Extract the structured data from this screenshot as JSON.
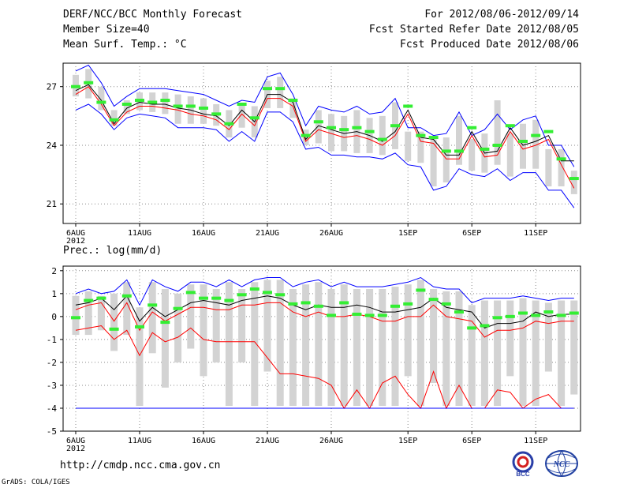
{
  "header": {
    "title": "DERF/NCC/BCC Monthly Forecast",
    "member_size": "Member Size=40",
    "variable_top": "Mean Surf. Temp.: °C",
    "forecast_period": "For 2012/08/06-2012/09/14",
    "started_refer": "Fcst Started Refer Date 2012/08/05",
    "produced": "Fcst Produced Date 2012/08/06"
  },
  "footer": {
    "url": "http://cmdp.ncc.cma.gov.cn",
    "grads": "GrADS: COLA/IGES",
    "logo_left_text": "BCC",
    "logo_right_text": "NCC"
  },
  "colors": {
    "ensemble_bound": "#0000ff",
    "ensemble_mean": "#000000",
    "control_line": "#ff0000",
    "median_marker": "#33ee33",
    "box": "#d3d3d3",
    "grid": "#888888"
  },
  "chart_data": [
    {
      "type": "line",
      "title": "Mean Surf. Temp.: °C",
      "x_days": 40,
      "xticks": [
        {
          "day": 0,
          "label": "6AUG",
          "sub": "2012"
        },
        {
          "day": 5,
          "label": "11AUG"
        },
        {
          "day": 10,
          "label": "16AUG"
        },
        {
          "day": 15,
          "label": "21AUG"
        },
        {
          "day": 20,
          "label": "26AUG"
        },
        {
          "day": 26,
          "label": "1SEP"
        },
        {
          "day": 31,
          "label": "6SEP"
        },
        {
          "day": 36,
          "label": "11SEP"
        }
      ],
      "ylim": [
        20,
        28.2
      ],
      "yticks": [
        21,
        24,
        27
      ],
      "series": [
        {
          "name": "ensemble max",
          "color": "#0000ff",
          "values": [
            27.8,
            28.1,
            27.2,
            26.0,
            26.5,
            26.9,
            26.9,
            26.9,
            26.8,
            26.7,
            26.6,
            26.3,
            26.0,
            26.3,
            26.2,
            27.5,
            27.7,
            26.6,
            25.0,
            26.0,
            25.8,
            25.7,
            26.0,
            25.6,
            25.7,
            26.4,
            24.9,
            24.9,
            24.5,
            24.6,
            25.7,
            24.5,
            24.8,
            25.6,
            24.8,
            25.3,
            25.5,
            24.0,
            24.0,
            22.9
          ]
        },
        {
          "name": "ensemble min",
          "color": "#0000ff",
          "values": [
            25.8,
            26.1,
            25.6,
            24.8,
            25.4,
            25.6,
            25.5,
            25.4,
            24.9,
            24.9,
            24.9,
            24.8,
            24.2,
            24.7,
            24.2,
            25.7,
            25.7,
            25.2,
            23.8,
            23.9,
            23.5,
            23.5,
            23.4,
            23.4,
            23.3,
            23.6,
            23.0,
            22.9,
            21.7,
            21.9,
            22.8,
            22.5,
            22.4,
            22.8,
            22.2,
            22.6,
            22.6,
            21.7,
            21.7,
            20.8
          ]
        },
        {
          "name": "ensemble mean",
          "color": "#000000",
          "values": [
            26.8,
            27.1,
            26.3,
            25.1,
            25.9,
            26.2,
            26.1,
            26.1,
            25.9,
            25.8,
            25.6,
            25.5,
            25.0,
            25.8,
            25.2,
            26.6,
            26.6,
            26.2,
            24.3,
            25.0,
            24.8,
            24.6,
            24.7,
            24.5,
            24.2,
            24.7,
            25.8,
            24.4,
            24.3,
            23.5,
            23.5,
            24.7,
            23.6,
            23.7,
            24.9,
            24.0,
            24.2,
            24.5,
            23.2,
            23.2
          ]
        },
        {
          "name": "control",
          "color": "#ff0000",
          "values": [
            26.6,
            27.0,
            26.1,
            25.0,
            25.7,
            26.0,
            26.0,
            25.9,
            25.8,
            25.6,
            25.5,
            25.3,
            24.8,
            25.6,
            25.0,
            26.4,
            26.4,
            26.0,
            24.2,
            24.8,
            24.6,
            24.4,
            24.5,
            24.3,
            24.0,
            24.5,
            25.6,
            24.2,
            24.1,
            23.3,
            23.3,
            24.5,
            23.4,
            23.5,
            24.7,
            23.8,
            24.0,
            24.3,
            23.0,
            21.8
          ]
        },
        {
          "name": "median",
          "color": "#33ee33",
          "values": [
            27.0,
            27.2,
            26.2,
            25.3,
            26.1,
            26.3,
            26.2,
            26.3,
            26.0,
            26.0,
            25.9,
            25.6,
            25.1,
            26.1,
            25.4,
            26.9,
            26.9,
            26.3,
            24.5,
            25.2,
            24.9,
            24.8,
            24.9,
            24.7,
            24.3,
            25.0,
            26.0,
            24.5,
            24.4,
            23.7,
            23.7,
            24.9,
            23.8,
            24.0,
            25.0,
            24.2,
            24.5,
            24.7,
            23.3,
            22.3
          ]
        },
        {
          "name": "box upper",
          "color": "#d3d3d3",
          "values": [
            27.6,
            27.9,
            27.0,
            25.8,
            26.3,
            26.7,
            26.7,
            26.7,
            26.6,
            26.5,
            26.4,
            26.1,
            25.8,
            26.1,
            26.0,
            27.3,
            27.5,
            26.4,
            24.8,
            25.8,
            25.6,
            25.5,
            25.8,
            25.4,
            25.5,
            26.2,
            24.7,
            24.7,
            24.3,
            24.4,
            25.5,
            24.3,
            24.6,
            26.3,
            24.6,
            25.1,
            25.3,
            23.8,
            23.8,
            22.7
          ]
        },
        {
          "name": "box lower",
          "color": "#d3d3d3",
          "values": [
            26.5,
            26.4,
            25.8,
            25.0,
            25.6,
            25.8,
            25.7,
            25.6,
            25.1,
            25.1,
            25.1,
            25.0,
            24.4,
            24.9,
            24.4,
            25.9,
            25.9,
            25.4,
            24.0,
            24.1,
            23.7,
            23.7,
            23.6,
            23.6,
            23.5,
            23.8,
            23.2,
            23.1,
            21.9,
            22.1,
            23.0,
            22.7,
            22.6,
            23.0,
            22.4,
            22.8,
            22.8,
            21.9,
            21.9,
            21.5
          ]
        }
      ]
    },
    {
      "type": "line",
      "title": "Prec.: log(mm/d)",
      "x_days": 40,
      "xticks": [
        {
          "day": 0,
          "label": "6AUG",
          "sub": "2012"
        },
        {
          "day": 5,
          "label": "11AUG"
        },
        {
          "day": 10,
          "label": "16AUG"
        },
        {
          "day": 15,
          "label": "21AUG"
        },
        {
          "day": 20,
          "label": "26AUG"
        },
        {
          "day": 26,
          "label": "1SEP"
        },
        {
          "day": 31,
          "label": "6SEP"
        },
        {
          "day": 36,
          "label": "11SEP"
        }
      ],
      "ylim": [
        -5,
        2.2
      ],
      "yticks": [
        -5,
        -4,
        -3,
        -2,
        -1,
        0,
        1,
        2
      ],
      "series": [
        {
          "name": "ensemble max",
          "color": "#0000ff",
          "values": [
            1.0,
            1.2,
            1.0,
            1.1,
            1.6,
            0.5,
            1.6,
            1.3,
            1.1,
            1.5,
            1.5,
            1.3,
            1.6,
            1.3,
            1.6,
            1.7,
            1.7,
            1.3,
            1.5,
            1.6,
            1.3,
            1.5,
            1.3,
            1.3,
            1.3,
            1.4,
            1.5,
            1.7,
            1.3,
            1.2,
            1.2,
            0.6,
            0.8,
            0.8,
            0.8,
            0.9,
            0.8,
            0.7,
            0.8,
            0.8
          ]
        },
        {
          "name": "lower extreme",
          "color": "#0000ff",
          "values": [
            -4.0,
            -4.0,
            -4.0,
            -4.0,
            -4.0,
            -4.0,
            -4.0,
            -4.0,
            -4.0,
            -4.0,
            -4.0,
            -4.0,
            -4.0,
            -4.0,
            -4.0,
            -4.0,
            -4.0,
            -4.0,
            -4.0,
            -4.0,
            -4.0,
            -4.0,
            -4.0,
            -4.0,
            -4.0,
            -4.0,
            -4.0,
            -4.0,
            -4.0,
            -4.0,
            -4.0,
            -4.0,
            -4.0,
            -4.0,
            -4.0,
            -4.0,
            -4.0,
            -4.0,
            -4.0,
            -4.0
          ]
        },
        {
          "name": "ensemble mean",
          "color": "#000000",
          "values": [
            0.5,
            0.6,
            0.8,
            0.3,
            0.9,
            -0.2,
            0.4,
            0.0,
            0.3,
            0.6,
            0.7,
            0.6,
            0.5,
            0.7,
            0.8,
            0.9,
            0.8,
            0.5,
            0.3,
            0.5,
            0.4,
            0.4,
            0.5,
            0.4,
            0.2,
            0.2,
            0.3,
            0.4,
            0.8,
            0.4,
            0.3,
            0.2,
            -0.5,
            -0.3,
            -0.3,
            -0.2,
            0.2,
            0.0,
            0.1,
            0.1
          ]
        },
        {
          "name": "control",
          "color": "#ff0000",
          "values": [
            0.3,
            0.5,
            0.6,
            -0.2,
            0.6,
            -0.6,
            0.2,
            -0.2,
            0.1,
            0.4,
            0.4,
            0.3,
            0.3,
            0.5,
            0.5,
            0.6,
            0.6,
            0.2,
            0.0,
            0.2,
            0.0,
            0.0,
            0.1,
            0.0,
            -0.2,
            -0.2,
            0.0,
            0.0,
            0.5,
            0.0,
            -0.1,
            -0.2,
            -0.9,
            -0.6,
            -0.6,
            -0.5,
            -0.2,
            -0.3,
            -0.2,
            -0.2
          ]
        },
        {
          "name": "ensemble min",
          "color": "#ff0000",
          "values": [
            -0.6,
            -0.5,
            -0.4,
            -1.0,
            -0.6,
            -1.7,
            -0.7,
            -1.1,
            -0.9,
            -0.5,
            -1.0,
            -1.1,
            -1.1,
            -1.1,
            -1.1,
            -1.8,
            -2.5,
            -2.5,
            -2.6,
            -2.7,
            -3.0,
            -4.0,
            -3.2,
            -4.0,
            -2.9,
            -2.6,
            -3.4,
            -4.0,
            -2.4,
            -4.0,
            -3.0,
            -4.0,
            -4.0,
            -3.2,
            -3.3,
            -4.0,
            -3.6,
            -3.4,
            -4.0,
            -4.0
          ]
        },
        {
          "name": "median",
          "color": "#33ee33",
          "values": [
            -0.05,
            0.7,
            0.8,
            -0.55,
            0.9,
            -0.45,
            0.5,
            -0.25,
            0.35,
            1.05,
            0.8,
            0.8,
            0.7,
            0.95,
            1.2,
            1.05,
            0.95,
            0.55,
            0.6,
            0.45,
            0.05,
            0.6,
            0.1,
            0.05,
            0.05,
            0.45,
            0.55,
            1.15,
            0.75,
            0.55,
            0.2,
            -0.5,
            -0.4,
            -0.05,
            0.0,
            0.15,
            0.05,
            0.2,
            0.05,
            0.15
          ]
        },
        {
          "name": "box upper",
          "color": "#d3d3d3",
          "values": [
            0.9,
            1.1,
            0.9,
            1.0,
            1.5,
            0.4,
            1.5,
            1.2,
            1.0,
            1.4,
            1.4,
            1.2,
            1.5,
            1.2,
            1.5,
            1.6,
            1.6,
            1.2,
            1.4,
            1.5,
            1.2,
            1.4,
            1.2,
            1.2,
            1.2,
            1.3,
            1.4,
            1.6,
            1.2,
            1.1,
            1.1,
            0.5,
            0.7,
            0.7,
            0.7,
            0.8,
            0.7,
            0.6,
            0.7,
            0.7
          ]
        },
        {
          "name": "box lower",
          "color": "#d3d3d3",
          "values": [
            -0.8,
            -0.8,
            -0.6,
            -1.5,
            -0.8,
            -3.9,
            -1.6,
            -3.1,
            -2.0,
            -1.4,
            -2.6,
            -2.0,
            -3.9,
            -2.0,
            -3.9,
            -2.4,
            -3.9,
            -3.9,
            -3.9,
            -3.9,
            -3.9,
            -3.9,
            -3.9,
            -3.9,
            -3.9,
            -3.9,
            -2.6,
            -3.9,
            -2.9,
            -3.9,
            -3.9,
            -3.9,
            -3.9,
            -3.9,
            -2.6,
            -3.9,
            -3.9,
            -2.4,
            -3.9,
            -3.4
          ]
        }
      ]
    }
  ]
}
